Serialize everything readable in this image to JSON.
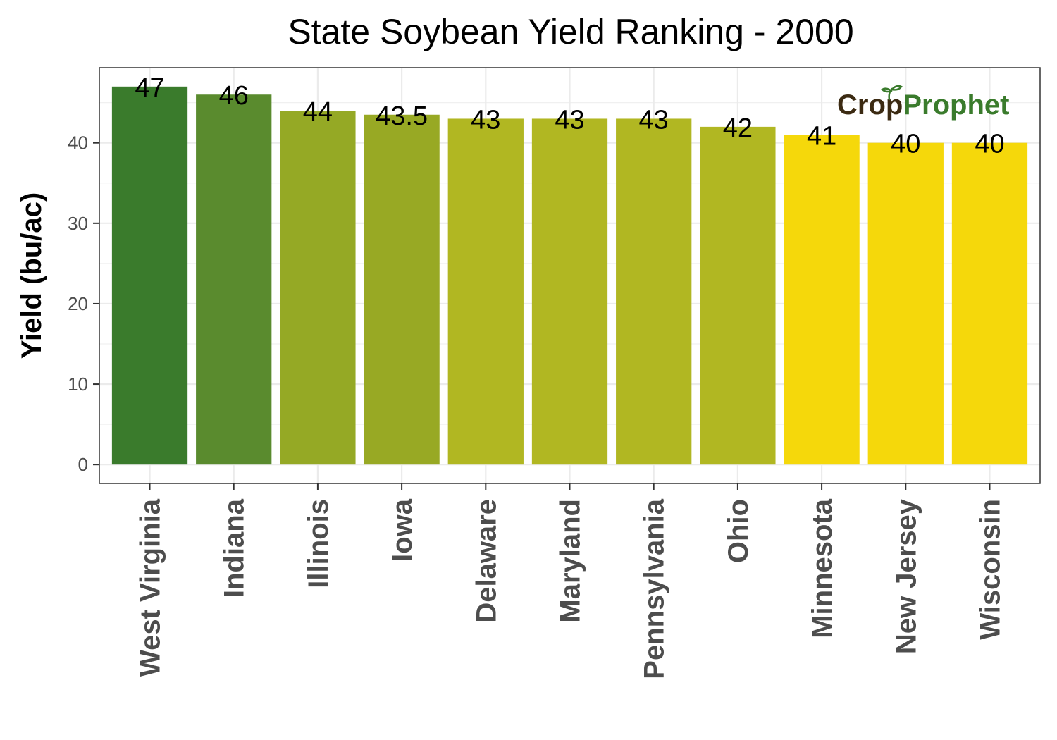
{
  "chart_data": {
    "type": "bar",
    "title": "State Soybean Yield Ranking - 2000",
    "xlabel": "",
    "ylabel": "Yield (bu/ac)",
    "ylim": [
      -2.35,
      49.35
    ],
    "yticks": [
      0,
      10,
      20,
      30,
      40
    ],
    "grid": true,
    "legend": "none",
    "categories": [
      "West Virginia",
      "Indiana",
      "Illinois",
      "Iowa",
      "Delaware",
      "Maryland",
      "Pennsylvania",
      "Ohio",
      "Minnesota",
      "New Jersey",
      "Wisconsin"
    ],
    "values": [
      47,
      46,
      44,
      43.5,
      43,
      43,
      43,
      42,
      41,
      40,
      40
    ],
    "data_labels": [
      "47",
      "46",
      "44",
      "43.5",
      "43",
      "43",
      "43",
      "42",
      "41",
      "40",
      "40"
    ],
    "colors": [
      "#3a7b2c",
      "#5a8b2e",
      "#95a925",
      "#98a924",
      "#b1b722",
      "#b1b722",
      "#b1b722",
      "#b1b722",
      "#f5d80b",
      "#f5d80b",
      "#f5d80b"
    ]
  },
  "logo": {
    "part1": "Cr",
    "part2": "o",
    "part3": "p",
    "part4": "Prophet",
    "color_dark": "#3b2a12",
    "color_green": "#3a7b2c"
  }
}
